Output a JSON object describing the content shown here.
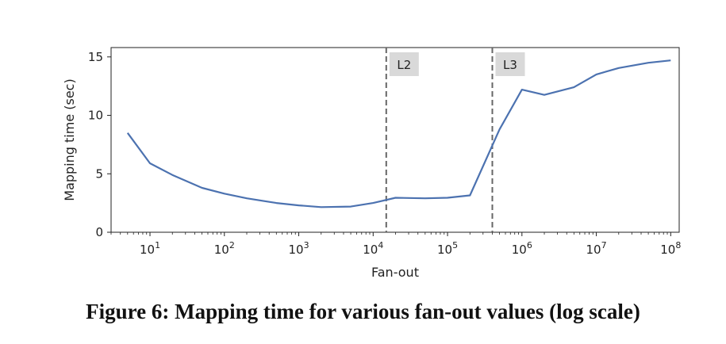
{
  "chart_data": {
    "type": "line",
    "xlabel": "Fan-out",
    "ylabel": "Mapping time (sec)",
    "x_scale": "log",
    "xlim": [
      3,
      130000000
    ],
    "ylim": [
      0,
      15.8
    ],
    "x_ticks": [
      {
        "value": 10,
        "base": "10",
        "exp": "1"
      },
      {
        "value": 100,
        "base": "10",
        "exp": "2"
      },
      {
        "value": 1000,
        "base": "10",
        "exp": "3"
      },
      {
        "value": 10000,
        "base": "10",
        "exp": "4"
      },
      {
        "value": 100000,
        "base": "10",
        "exp": "5"
      },
      {
        "value": 1000000,
        "base": "10",
        "exp": "6"
      },
      {
        "value": 10000000,
        "base": "10",
        "exp": "7"
      },
      {
        "value": 100000000,
        "base": "10",
        "exp": "8"
      }
    ],
    "y_ticks": [
      0,
      5,
      10,
      15
    ],
    "series": [
      {
        "color": "#4c72b0",
        "points": [
          [
            5,
            8.5
          ],
          [
            10,
            5.9
          ],
          [
            20,
            4.9
          ],
          [
            50,
            3.8
          ],
          [
            100,
            3.3
          ],
          [
            200,
            2.9
          ],
          [
            500,
            2.5
          ],
          [
            1000,
            2.3
          ],
          [
            2000,
            2.15
          ],
          [
            5000,
            2.2
          ],
          [
            10000,
            2.5
          ],
          [
            20000,
            2.95
          ],
          [
            50000,
            2.9
          ],
          [
            100000,
            2.95
          ],
          [
            200000,
            3.15
          ],
          [
            500000,
            8.8
          ],
          [
            1000000,
            12.2
          ],
          [
            2000000,
            11.75
          ],
          [
            5000000,
            12.4
          ],
          [
            10000000,
            13.5
          ],
          [
            20000000,
            14.05
          ],
          [
            50000000,
            14.5
          ],
          [
            100000000,
            14.7
          ]
        ]
      }
    ],
    "reference_lines": [
      {
        "x": 15000,
        "label": "L2",
        "color": "#666666",
        "style": "dashed"
      },
      {
        "x": 400000,
        "label": "L3",
        "color": "#666666",
        "style": "dashed"
      }
    ]
  },
  "caption": "Figure 6: Mapping time for various fan-out values (log scale)"
}
